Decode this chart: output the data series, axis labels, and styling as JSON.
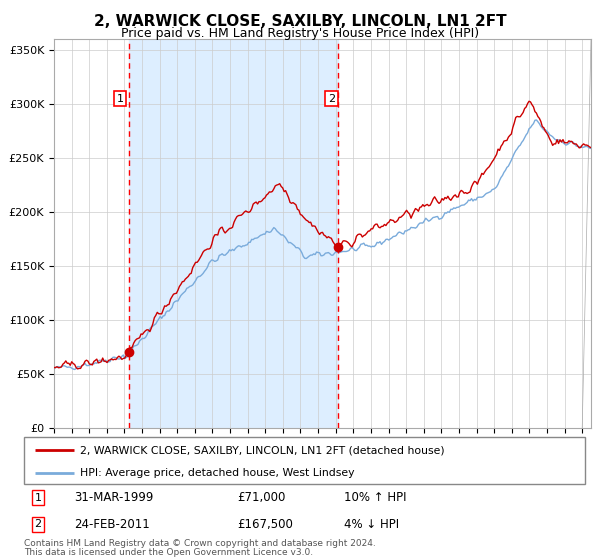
{
  "title": "2, WARWICK CLOSE, SAXILBY, LINCOLN, LN1 2FT",
  "subtitle": "Price paid vs. HM Land Registry's House Price Index (HPI)",
  "legend_line1": "2, WARWICK CLOSE, SAXILBY, LINCOLN, LN1 2FT (detached house)",
  "legend_line2": "HPI: Average price, detached house, West Lindsey",
  "annotation1": {
    "label": "1",
    "date_str": "31-MAR-1999",
    "price_str": "£71,000",
    "hpi_str": "10% ↑ HPI",
    "year": 1999.25,
    "value": 71000
  },
  "annotation2": {
    "label": "2",
    "date_str": "24-FEB-2011",
    "price_str": "£167,500",
    "hpi_str": "4% ↓ HPI",
    "year": 2011.15,
    "value": 167500
  },
  "footer": "Contains HM Land Registry data © Crown copyright and database right 2024.\nThis data is licensed under the Open Government Licence v3.0.",
  "ylim": [
    0,
    360000
  ],
  "yticks": [
    0,
    50000,
    100000,
    150000,
    200000,
    250000,
    300000,
    350000
  ],
  "ytick_labels": [
    "£0",
    "£50K",
    "£100K",
    "£150K",
    "£200K",
    "£250K",
    "£300K",
    "£350K"
  ],
  "red_color": "#cc0000",
  "blue_color": "#7aabdb",
  "bg_color": "#ddeeff",
  "grid_color": "#cccccc",
  "xmin": 1995.0,
  "xmax": 2025.5
}
